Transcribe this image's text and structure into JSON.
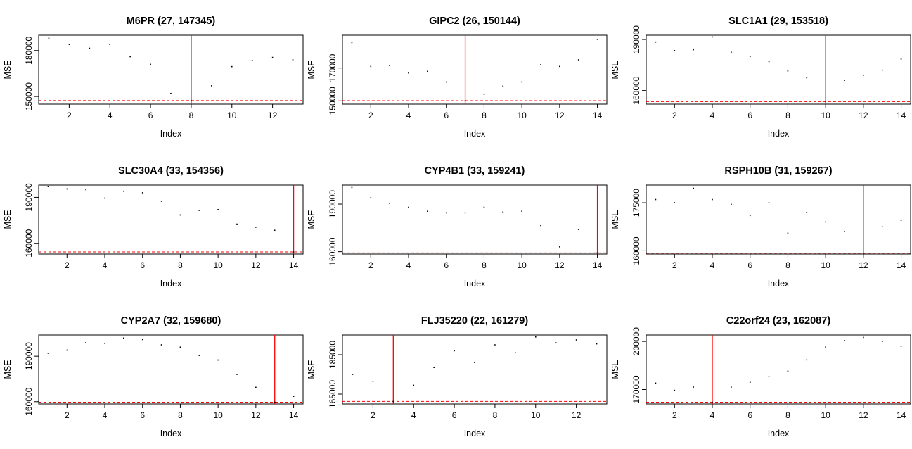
{
  "chart_data": [
    {
      "type": "scatter",
      "title": "M6PR (27, 147345)",
      "xlabel": "Index",
      "ylabel": "MSE",
      "x": [
        1,
        2,
        3,
        4,
        5,
        6,
        7,
        8,
        9,
        10,
        11,
        12,
        13
      ],
      "y": [
        188000,
        184000,
        181500,
        184000,
        176000,
        171000,
        152000,
        147345,
        157000,
        169500,
        173500,
        175500,
        174000
      ],
      "xlim": [
        0.5,
        13.5
      ],
      "ylim": [
        145000,
        190000
      ],
      "xticks": [
        2,
        4,
        6,
        8,
        10,
        12
      ],
      "xtick_labels": [
        "2",
        "4",
        "6",
        "8",
        "10",
        "12"
      ],
      "yticks": [
        150000,
        180000
      ],
      "ytick_labels": [
        "150000",
        "180000"
      ],
      "selected_index": 8,
      "min_mse": 147345,
      "color": "#ff0000"
    },
    {
      "type": "scatter",
      "title": "GIPC2 (26, 150144)",
      "xlabel": "Index",
      "ylabel": "MSE",
      "x": [
        1,
        2,
        3,
        4,
        5,
        6,
        7,
        8,
        9,
        10,
        11,
        12,
        13,
        14
      ],
      "y": [
        185500,
        171000,
        171500,
        167000,
        168000,
        161500,
        150144,
        154000,
        159000,
        161500,
        172000,
        171000,
        175000,
        187500
      ],
      "xlim": [
        0.5,
        14.5
      ],
      "ylim": [
        148000,
        190000
      ],
      "xticks": [
        2,
        4,
        6,
        8,
        10,
        12,
        14
      ],
      "xtick_labels": [
        "2",
        "4",
        "6",
        "8",
        "10",
        "12",
        "14"
      ],
      "yticks": [
        150000,
        170000
      ],
      "ytick_labels": [
        "150000",
        "170000"
      ],
      "selected_index": 7,
      "min_mse": 150144,
      "color": "#ff0000"
    },
    {
      "type": "scatter",
      "title": "SLC1A1 (29, 153518)",
      "xlabel": "Index",
      "ylabel": "MSE",
      "x": [
        1,
        2,
        3,
        4,
        5,
        6,
        7,
        8,
        9,
        10,
        11,
        12,
        13,
        14
      ],
      "y": [
        188500,
        183500,
        184000,
        191500,
        182500,
        180000,
        177000,
        171500,
        167500,
        153518,
        166000,
        169000,
        172000,
        178500
      ],
      "xlim": [
        0.5,
        14.5
      ],
      "ylim": [
        152000,
        192500
      ],
      "xticks": [
        2,
        4,
        6,
        8,
        10,
        12,
        14
      ],
      "xtick_labels": [
        "2",
        "4",
        "6",
        "8",
        "10",
        "12",
        "14"
      ],
      "yticks": [
        160000,
        190000
      ],
      "ytick_labels": [
        "160000",
        "190000"
      ],
      "selected_index": 10,
      "min_mse": 153518,
      "color": "#ff0000"
    },
    {
      "type": "scatter",
      "title": "SLC30A4 (33, 154356)",
      "xlabel": "Index",
      "ylabel": "MSE",
      "x": [
        1,
        2,
        3,
        4,
        5,
        6,
        7,
        8,
        9,
        10,
        11,
        12,
        13,
        14
      ],
      "y": [
        197000,
        195500,
        195000,
        189500,
        194000,
        193000,
        187500,
        178500,
        181500,
        182000,
        172500,
        170500,
        168500,
        154356
      ],
      "xlim": [
        0.5,
        14.5
      ],
      "ylim": [
        153000,
        198000
      ],
      "xticks": [
        2,
        4,
        6,
        8,
        10,
        12,
        14
      ],
      "xtick_labels": [
        "2",
        "4",
        "6",
        "8",
        "10",
        "12",
        "14"
      ],
      "yticks": [
        160000,
        190000
      ],
      "ytick_labels": [
        "160000",
        "190000"
      ],
      "selected_index": 14,
      "min_mse": 154356,
      "color": "#ff0000"
    },
    {
      "type": "scatter",
      "title": "CYP4B1 (33, 159241)",
      "xlabel": "Index",
      "ylabel": "MSE",
      "x": [
        1,
        2,
        3,
        4,
        5,
        6,
        7,
        8,
        9,
        10,
        11,
        12,
        13,
        14
      ],
      "y": [
        200500,
        194000,
        190500,
        188000,
        185500,
        184500,
        184500,
        188000,
        185000,
        185500,
        176500,
        163000,
        174000,
        159241
      ],
      "xlim": [
        0.5,
        14.5
      ],
      "ylim": [
        158500,
        202000
      ],
      "xticks": [
        2,
        4,
        6,
        8,
        10,
        12,
        14
      ],
      "xtick_labels": [
        "2",
        "4",
        "6",
        "8",
        "10",
        "12",
        "14"
      ],
      "yticks": [
        160000,
        190000
      ],
      "ytick_labels": [
        "160000",
        "190000"
      ],
      "selected_index": 14,
      "min_mse": 159241,
      "color": "#ff0000"
    },
    {
      "type": "scatter",
      "title": "RSPH10B (31, 159267)",
      "xlabel": "Index",
      "ylabel": "MSE",
      "x": [
        1,
        2,
        3,
        4,
        5,
        6,
        7,
        8,
        9,
        10,
        11,
        12,
        13,
        14
      ],
      "y": [
        176000,
        175000,
        179500,
        176000,
        174500,
        171000,
        175000,
        165500,
        172000,
        169000,
        166000,
        159267,
        167500,
        169500
      ],
      "xlim": [
        0.5,
        14.5
      ],
      "ylim": [
        159000,
        180500
      ],
      "xticks": [
        2,
        4,
        6,
        8,
        10,
        12,
        14
      ],
      "xtick_labels": [
        "2",
        "4",
        "6",
        "8",
        "10",
        "12",
        "14"
      ],
      "yticks": [
        160000,
        175000
      ],
      "ytick_labels": [
        "160000",
        "175000"
      ],
      "selected_index": 12,
      "min_mse": 159267,
      "color": "#ff0000"
    },
    {
      "type": "scatter",
      "title": "CYP2A7 (32, 159680)",
      "xlabel": "Index",
      "ylabel": "MSE",
      "x": [
        1,
        2,
        3,
        4,
        5,
        6,
        7,
        8,
        9,
        10,
        11,
        12,
        13,
        14
      ],
      "y": [
        192000,
        194000,
        199000,
        198500,
        202000,
        201000,
        197500,
        196000,
        190500,
        187500,
        178000,
        169500,
        159680,
        163500
      ],
      "xlim": [
        0.5,
        14.5
      ],
      "ylim": [
        158500,
        204000
      ],
      "xticks": [
        2,
        4,
        6,
        8,
        10,
        12,
        14
      ],
      "xtick_labels": [
        "2",
        "4",
        "6",
        "8",
        "10",
        "12",
        "14"
      ],
      "yticks": [
        160000,
        190000
      ],
      "ytick_labels": [
        "160000",
        "190000"
      ],
      "selected_index": 13,
      "min_mse": 159680,
      "color": "#ff0000"
    },
    {
      "type": "scatter",
      "title": "FLJ35220 (22, 161279)",
      "xlabel": "Index",
      "ylabel": "MSE",
      "x": [
        1,
        2,
        3,
        4,
        5,
        6,
        7,
        8,
        9,
        10,
        11,
        12,
        13
      ],
      "y": [
        175000,
        171500,
        161279,
        169500,
        178500,
        187000,
        181000,
        190000,
        186000,
        194000,
        191000,
        192500,
        190500
      ],
      "xlim": [
        0.5,
        13.5
      ],
      "ylim": [
        160000,
        195000
      ],
      "xticks": [
        2,
        4,
        6,
        8,
        10,
        12
      ],
      "xtick_labels": [
        "2",
        "4",
        "6",
        "8",
        "10",
        "12"
      ],
      "yticks": [
        165000,
        185000
      ],
      "ytick_labels": [
        "165000",
        "185000"
      ],
      "selected_index": 3,
      "min_mse": 161279,
      "color": "#ff0000"
    },
    {
      "type": "scatter",
      "title": "C22orf24 (23, 162087)",
      "xlabel": "Index",
      "ylabel": "MSE",
      "x": [
        1,
        2,
        3,
        4,
        5,
        6,
        7,
        8,
        9,
        10,
        11,
        12,
        13,
        14
      ],
      "y": [
        174000,
        169500,
        171500,
        162087,
        171500,
        174500,
        178000,
        181500,
        188500,
        196500,
        200500,
        202500,
        200000,
        197000
      ],
      "xlim": [
        0.5,
        14.5
      ],
      "ylim": [
        161000,
        204000
      ],
      "xticks": [
        2,
        4,
        6,
        8,
        10,
        12,
        14
      ],
      "xtick_labels": [
        "2",
        "4",
        "6",
        "8",
        "10",
        "12",
        "14"
      ],
      "yticks": [
        170000,
        200000
      ],
      "ytick_labels": [
        "170000",
        "200000"
      ],
      "selected_index": 4,
      "min_mse": 162087,
      "color": "#ff0000"
    }
  ]
}
